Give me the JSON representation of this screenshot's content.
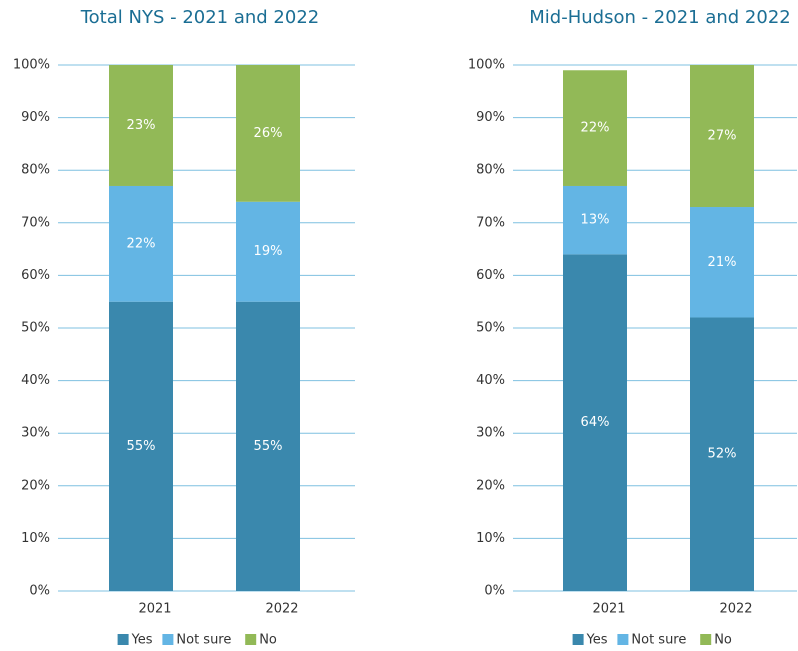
{
  "chart_data": [
    {
      "type": "bar",
      "stacked": true,
      "title": "Total NYS - 2021 and 2022",
      "categories": [
        "2021",
        "2022"
      ],
      "series": [
        {
          "name": "Yes",
          "color": "#3a88ad",
          "values": [
            55,
            55
          ],
          "value_labels": [
            "55%",
            "55%"
          ]
        },
        {
          "name": "Not sure",
          "color": "#63b5e4",
          "values": [
            22,
            19
          ],
          "value_labels": [
            "22%",
            "19%"
          ]
        },
        {
          "name": "No",
          "color": "#92b957",
          "values": [
            23,
            26
          ],
          "value_labels": [
            "23%",
            "26%"
          ]
        }
      ],
      "ylim": [
        0,
        100
      ],
      "yticks": [
        {
          "value": 0,
          "label": "0%"
        },
        {
          "value": 10,
          "label": "10%"
        },
        {
          "value": 20,
          "label": "20%"
        },
        {
          "value": 30,
          "label": "30%"
        },
        {
          "value": 40,
          "label": "40%"
        },
        {
          "value": 50,
          "label": "50%"
        },
        {
          "value": 60,
          "label": "60%"
        },
        {
          "value": 70,
          "label": "70%"
        },
        {
          "value": 80,
          "label": "80%"
        },
        {
          "value": 90,
          "label": "90%"
        },
        {
          "value": 100,
          "label": "100%"
        }
      ],
      "grid": true,
      "legend": "bottom"
    },
    {
      "type": "bar",
      "stacked": true,
      "title": "Mid-Hudson - 2021 and 2022",
      "categories": [
        "2021",
        "2022"
      ],
      "series": [
        {
          "name": "Yes",
          "color": "#3a88ad",
          "values": [
            64,
            52
          ],
          "value_labels": [
            "64%",
            "52%"
          ]
        },
        {
          "name": "Not sure",
          "color": "#63b5e4",
          "values": [
            13,
            21
          ],
          "value_labels": [
            "13%",
            "21%"
          ]
        },
        {
          "name": "No",
          "color": "#92b957",
          "values": [
            22,
            27
          ],
          "value_labels": [
            "22%",
            "27%"
          ]
        }
      ],
      "ylim": [
        0,
        100
      ],
      "yticks": [
        {
          "value": 0,
          "label": "0%"
        },
        {
          "value": 10,
          "label": "10%"
        },
        {
          "value": 20,
          "label": "20%"
        },
        {
          "value": 30,
          "label": "30%"
        },
        {
          "value": 40,
          "label": "40%"
        },
        {
          "value": 50,
          "label": "50%"
        },
        {
          "value": 60,
          "label": "60%"
        },
        {
          "value": 70,
          "label": "70%"
        },
        {
          "value": 80,
          "label": "80%"
        },
        {
          "value": 90,
          "label": "90%"
        },
        {
          "value": 100,
          "label": "100%"
        }
      ],
      "grid": true,
      "legend": "bottom"
    }
  ]
}
